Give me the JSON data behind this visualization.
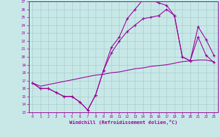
{
  "bg_color": "#c8e8e8",
  "grid_color": "#a8cccc",
  "line_color": "#990099",
  "xlim_min": -0.5,
  "xlim_max": 23.5,
  "ylim_min": 13,
  "ylim_max": 27,
  "xticks": [
    0,
    1,
    2,
    3,
    4,
    5,
    6,
    7,
    8,
    9,
    10,
    11,
    12,
    13,
    14,
    15,
    16,
    17,
    18,
    19,
    20,
    21,
    22,
    23
  ],
  "yticks": [
    13,
    14,
    15,
    16,
    17,
    18,
    19,
    20,
    21,
    22,
    23,
    24,
    25,
    26,
    27
  ],
  "xlabel": "Windchill (Refroidissement éolien,°C)",
  "curve1_x": [
    0,
    1,
    2,
    3,
    4,
    5,
    6,
    7,
    8,
    9,
    10,
    11,
    12,
    13,
    14,
    15,
    16,
    17,
    18,
    19,
    20,
    21,
    22,
    23
  ],
  "curve1_y": [
    16.7,
    16.0,
    16.0,
    15.5,
    15.0,
    15.0,
    14.3,
    13.3,
    15.2,
    18.3,
    21.2,
    22.5,
    24.8,
    26.0,
    27.2,
    27.2,
    26.8,
    26.5,
    25.2,
    20.0,
    19.5,
    22.5,
    20.2,
    19.3
  ],
  "curve2_x": [
    0,
    1,
    2,
    3,
    4,
    5,
    6,
    7,
    8,
    9,
    10,
    11,
    12,
    13,
    14,
    15,
    16,
    17,
    18,
    19,
    20,
    21,
    22,
    23
  ],
  "curve2_y": [
    16.7,
    16.0,
    16.0,
    15.5,
    15.0,
    15.0,
    14.3,
    13.3,
    15.2,
    18.3,
    20.5,
    22.0,
    23.2,
    24.0,
    24.8,
    25.0,
    25.2,
    26.0,
    25.2,
    20.0,
    19.5,
    23.8,
    22.2,
    20.2
  ],
  "curve3_x": [
    0,
    1,
    2,
    3,
    4,
    5,
    6,
    7,
    8,
    9,
    10,
    11,
    12,
    13,
    14,
    15,
    16,
    17,
    18,
    19,
    20,
    21,
    22,
    23
  ],
  "curve3_y": [
    16.7,
    16.3,
    16.5,
    16.7,
    16.9,
    17.1,
    17.3,
    17.5,
    17.7,
    17.8,
    18.0,
    18.1,
    18.3,
    18.5,
    18.6,
    18.8,
    18.9,
    19.0,
    19.2,
    19.4,
    19.5,
    19.6,
    19.6,
    19.4
  ]
}
